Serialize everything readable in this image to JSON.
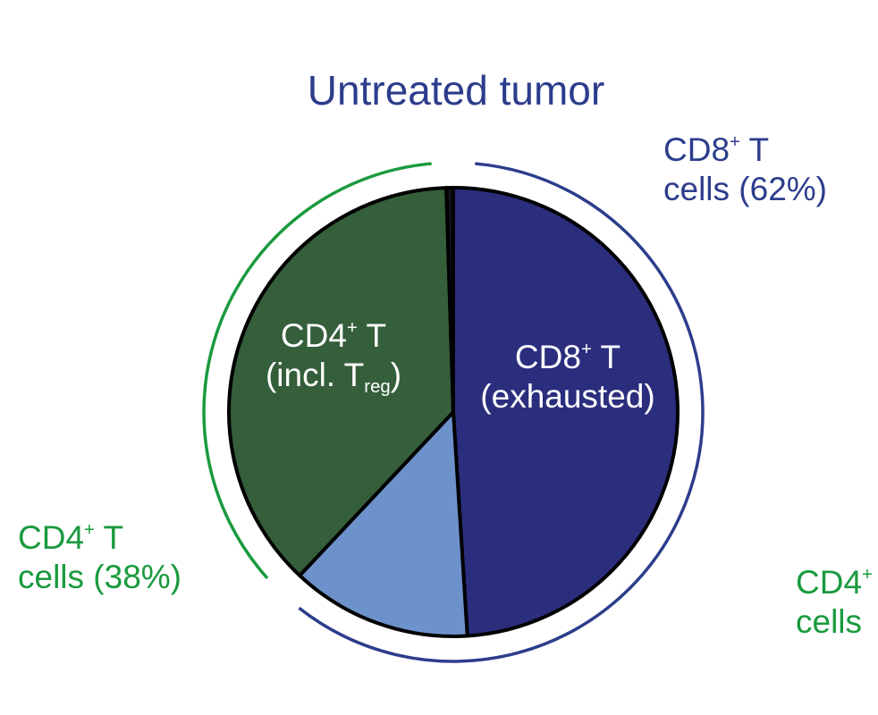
{
  "chart_data": {
    "type": "pie",
    "title": "Untreated tumor",
    "slices": [
      {
        "key": "cd8",
        "value": 49,
        "color": "#2b2e7d",
        "label_main": "CD8",
        "label_sup": "+",
        "label_rest": " T",
        "label_line2": "(exhausted)"
      },
      {
        "key": "other",
        "value": 13,
        "color": "#6d92cb"
      },
      {
        "key": "cd4",
        "value": 37.5,
        "color": "#355e3b",
        "label_main": "CD4",
        "label_sup": "+",
        "label_rest": " T",
        "label_line2_pre": "(incl. T",
        "label_line2_sub": "reg",
        "label_line2_post": ")"
      },
      {
        "key": "minor",
        "value": 0.5,
        "color": "#111111"
      }
    ],
    "groups": [
      {
        "key": "cd8_group",
        "color": "#2d3d8c",
        "value": 62,
        "line1_main": "CD8",
        "line1_sup": "+",
        "line1_rest": " T",
        "line2": "cells (62%)"
      },
      {
        "key": "cd4_group",
        "color": "#1a9a3e",
        "value": 38,
        "line1_main": "CD4",
        "line1_sup": "+",
        "line1_rest": " T",
        "line2": "cells (38%)"
      }
    ],
    "clipped_label": {
      "line1_main": "CD4",
      "line1_sup": "+",
      "line2": "cells"
    }
  }
}
